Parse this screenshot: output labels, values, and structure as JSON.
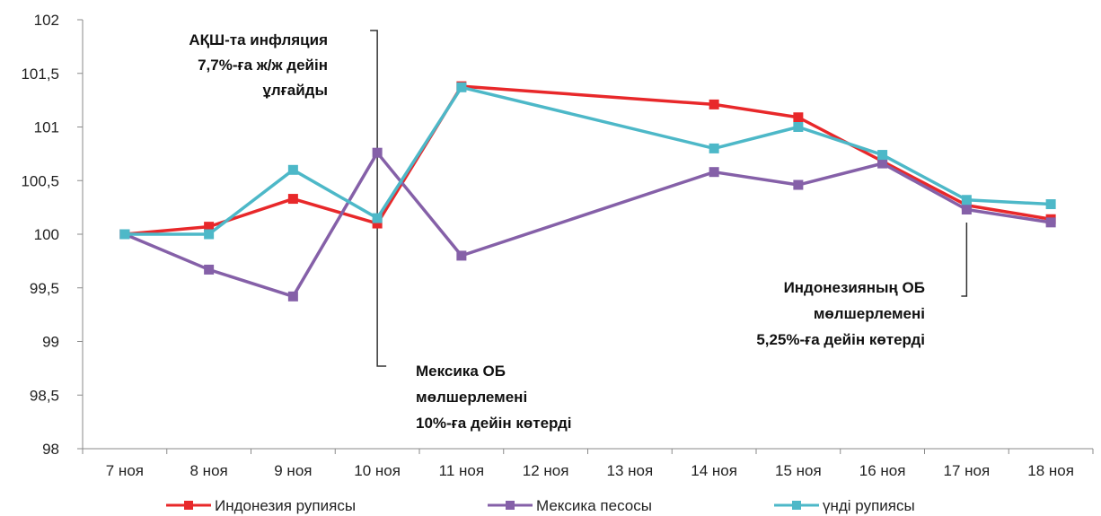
{
  "chart_data": {
    "type": "line",
    "categories": [
      "7 ноя",
      "8 ноя",
      "9 ноя",
      "10 ноя",
      "11 ноя",
      "12 ноя",
      "13 ноя",
      "14 ноя",
      "15 ноя",
      "16 ноя",
      "17 ноя",
      "18 ноя"
    ],
    "ylim": [
      98,
      102
    ],
    "yticks": [
      "98",
      "98,5",
      "99",
      "99,5",
      "100",
      "100,5",
      "101",
      "101,5",
      "102"
    ],
    "yticks_values": [
      98,
      98.5,
      99,
      99.5,
      100,
      100.5,
      101,
      101.5,
      102
    ],
    "grid": false,
    "legend_position": "bottom",
    "series": [
      {
        "name": "Индонезия рупиясы",
        "color": "#e8282a",
        "x": [
          "7 ноя",
          "8 ноя",
          "9 ноя",
          "10 ноя",
          "11 ноя",
          "14 ноя",
          "15 ноя",
          "16 ноя",
          "17 ноя",
          "18 ноя"
        ],
        "values": [
          100.0,
          100.07,
          100.33,
          100.1,
          101.38,
          101.21,
          101.09,
          100.68,
          100.27,
          100.14
        ]
      },
      {
        "name": "Мексика песосы",
        "color": "#8560a8",
        "x": [
          "7 ноя",
          "8 ноя",
          "9 ноя",
          "10 ноя",
          "11 ноя",
          "14 ноя",
          "15 ноя",
          "16 ноя",
          "17 ноя",
          "18 ноя"
        ],
        "values": [
          100.0,
          99.67,
          99.42,
          100.76,
          99.8,
          100.58,
          100.46,
          100.66,
          100.23,
          100.11
        ]
      },
      {
        "name": "үнді рупиясы",
        "color": "#4db8c8",
        "x": [
          "7 ноя",
          "8 ноя",
          "9 ноя",
          "10 ноя",
          "11 ноя",
          "14 ноя",
          "15 ноя",
          "16 ноя",
          "17 ноя",
          "18 ноя"
        ],
        "values": [
          100.0,
          100.0,
          100.6,
          100.15,
          101.37,
          100.8,
          101.0,
          100.74,
          100.32,
          100.28
        ]
      }
    ],
    "annotations": [
      {
        "lines": [
          "АҚШ-та инфляция",
          "7,7%-ға ж/ж дейін",
          "ұлғайды"
        ]
      },
      {
        "lines": [
          "Мексика ОБ",
          "мөлшерлемені",
          "10%-ға дейін көтерді"
        ]
      },
      {
        "lines": [
          "Индонезияның ОБ",
          "мөлшерлемені",
          "5,25%-ға дейін көтерді"
        ]
      }
    ]
  }
}
